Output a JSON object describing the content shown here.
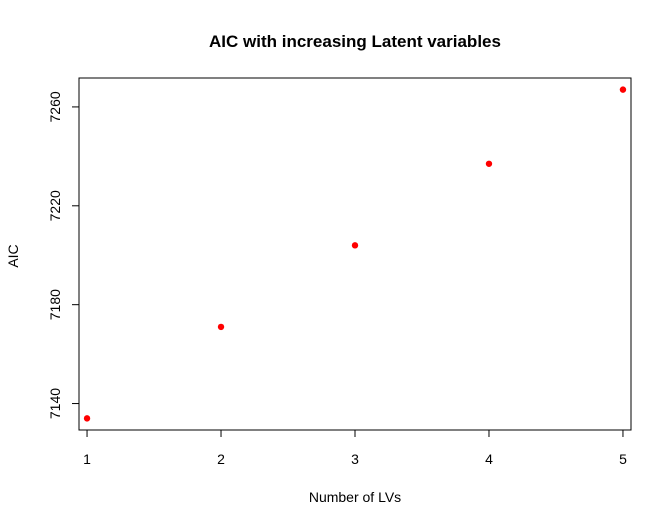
{
  "chart_data": {
    "type": "scatter",
    "title": "AIC with increasing Latent variables",
    "xlabel": "Number of LVs",
    "ylabel": "AIC",
    "x": [
      1,
      2,
      3,
      4,
      5
    ],
    "y": [
      7134,
      7171,
      7204,
      7237,
      7267
    ],
    "xlim": [
      0.94,
      5.06
    ],
    "ylim": [
      7129.3,
      7271.7
    ],
    "xticks": [
      1,
      2,
      3,
      4,
      5
    ],
    "xtick_labels": [
      "1",
      "2",
      "3",
      "4",
      "5"
    ],
    "yticks": [
      7140,
      7180,
      7220,
      7260
    ],
    "ytick_labels": [
      "7140",
      "7180",
      "7220",
      "7260"
    ],
    "point_color": "#ff0000",
    "grid": false
  }
}
